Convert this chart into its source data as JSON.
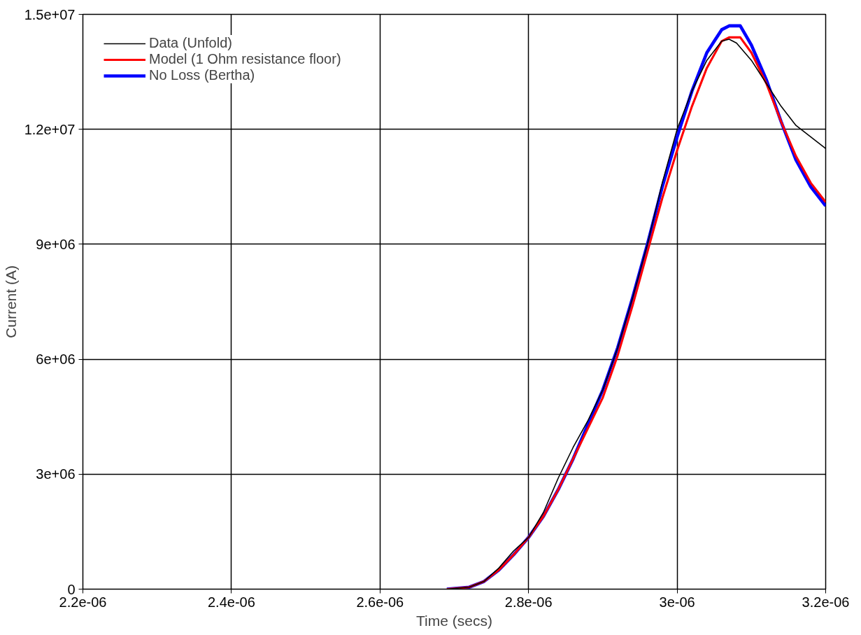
{
  "chart_data": {
    "type": "line",
    "xlabel": "Time (secs)",
    "ylabel": "Current (A)",
    "xlim": [
      2.2e-06,
      3.2e-06
    ],
    "ylim": [
      0,
      15000000
    ],
    "xticks": [
      {
        "value": 2.2e-06,
        "label": "2.2e-06"
      },
      {
        "value": 2.4e-06,
        "label": "2.4e-06"
      },
      {
        "value": 2.6e-06,
        "label": "2.6e-06"
      },
      {
        "value": 2.8e-06,
        "label": "2.8e-06"
      },
      {
        "value": 3e-06,
        "label": "3e-06"
      },
      {
        "value": 3.2e-06,
        "label": "3.2e-06"
      }
    ],
    "yticks": [
      0,
      {
        "value": 3000000,
        "label": "3e+06"
      },
      {
        "value": 6000000,
        "label": "6e+06"
      },
      {
        "value": 9000000,
        "label": "9e+06"
      },
      {
        "value": 12000000,
        "label": "1.2e+07"
      },
      {
        "value": 15000000,
        "label": "1.5e+07"
      }
    ],
    "grid": true,
    "legend": "top left",
    "line_style": "solid",
    "marker": "none",
    "series": [
      {
        "name": "Data (Unfold)",
        "color": "#000000",
        "x": [
          2.69e-06,
          2.72e-06,
          2.74e-06,
          2.76e-06,
          2.78e-06,
          2.8e-06,
          2.82e-06,
          2.84e-06,
          2.86e-06,
          2.88e-06,
          2.9e-06,
          2.92e-06,
          2.94e-06,
          2.96e-06,
          2.98e-06,
          3e-06,
          3.02e-06,
          3.04e-06,
          3.06e-06,
          3.07e-06,
          3.08e-06,
          3.1e-06,
          3.12e-06,
          3.14e-06,
          3.16e-06,
          3.18e-06,
          3.2e-06
        ],
        "values": [
          0,
          50000,
          200000,
          550000,
          1000000,
          1350000,
          2000000,
          2900000,
          3700000,
          4400000,
          5200000,
          6300000,
          7600000,
          9000000,
          10600000,
          12000000,
          13000000,
          13800000,
          14300000,
          14350000,
          14250000,
          13800000,
          13200000,
          12600000,
          12100000,
          11800000,
          11500000
        ]
      },
      {
        "name": "Model (1 Ohm resistance floor)",
        "color": "#ff0000",
        "x": [
          2.69e-06,
          2.72e-06,
          2.74e-06,
          2.76e-06,
          2.78e-06,
          2.8e-06,
          2.82e-06,
          2.84e-06,
          2.86e-06,
          2.88e-06,
          2.9e-06,
          2.92e-06,
          2.94e-06,
          2.96e-06,
          2.98e-06,
          3e-06,
          3.02e-06,
          3.04e-06,
          3.06e-06,
          3.07e-06,
          3.085e-06,
          3.1e-06,
          3.12e-06,
          3.14e-06,
          3.16e-06,
          3.18e-06,
          3.2e-06
        ],
        "values": [
          0,
          50000,
          200000,
          500000,
          900000,
          1350000,
          1900000,
          2600000,
          3400000,
          4200000,
          5000000,
          6100000,
          7400000,
          8800000,
          10200000,
          11450000,
          12600000,
          13600000,
          14300000,
          14400000,
          14400000,
          14000000,
          13200000,
          12200000,
          11300000,
          10600000,
          10100000
        ]
      },
      {
        "name": "No Loss (Bertha)",
        "color": "#0000ff",
        "x": [
          2.69e-06,
          2.72e-06,
          2.74e-06,
          2.76e-06,
          2.78e-06,
          2.8e-06,
          2.82e-06,
          2.84e-06,
          2.86e-06,
          2.88e-06,
          2.9e-06,
          2.92e-06,
          2.94e-06,
          2.96e-06,
          2.98e-06,
          3e-06,
          3.02e-06,
          3.04e-06,
          3.06e-06,
          3.07e-06,
          3.085e-06,
          3.1e-06,
          3.12e-06,
          3.14e-06,
          3.16e-06,
          3.18e-06,
          3.2e-06
        ],
        "values": [
          0,
          50000,
          200000,
          500000,
          900000,
          1350000,
          1900000,
          2600000,
          3400000,
          4300000,
          5200000,
          6300000,
          7600000,
          9000000,
          10500000,
          11800000,
          13000000,
          14000000,
          14600000,
          14700000,
          14700000,
          14200000,
          13300000,
          12200000,
          11200000,
          10500000,
          10000000
        ]
      }
    ]
  }
}
